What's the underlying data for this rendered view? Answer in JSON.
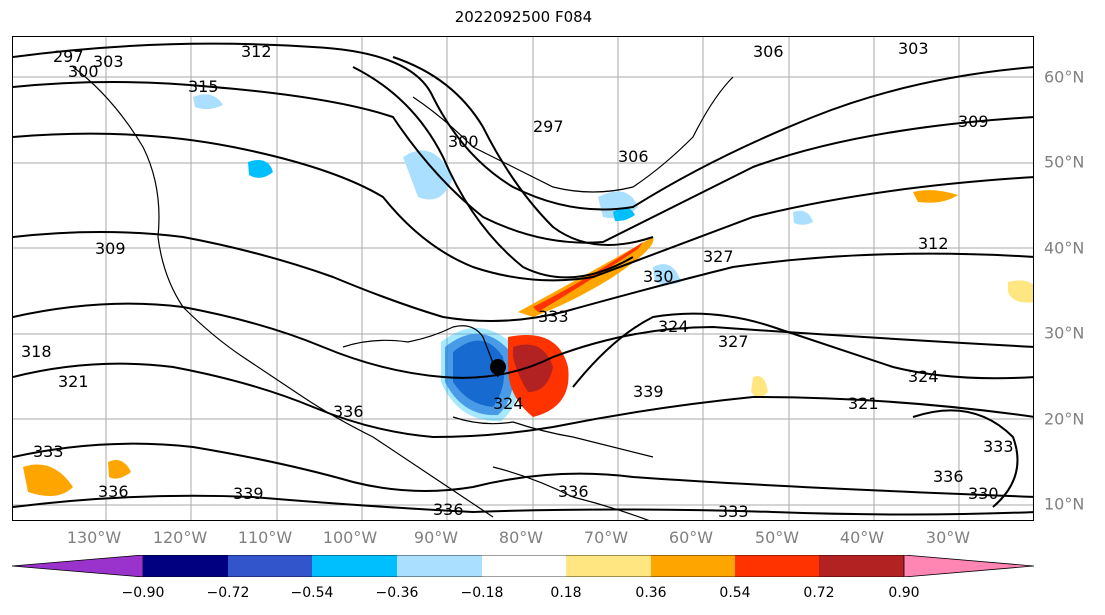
{
  "title": "2022092500 F084",
  "longitude_labels": [
    "130°W",
    "120°W",
    "110°W",
    "100°W",
    "90°W",
    "80°W",
    "70°W",
    "60°W",
    "50°W",
    "40°W",
    "30°W"
  ],
  "latitude_labels": [
    "60°N",
    "50°N",
    "40°N",
    "30°N",
    "20°N",
    "10°N"
  ],
  "contour_labels": [
    "297",
    "300",
    "303",
    "312",
    "315",
    "309",
    "306",
    "300",
    "297",
    "303",
    "306",
    "309",
    "327",
    "312",
    "330",
    "324",
    "333",
    "318",
    "321",
    "324",
    "327",
    "336",
    "339",
    "336",
    "336",
    "333",
    "330",
    "321",
    "324",
    "336",
    "339",
    "333",
    "336",
    "333"
  ],
  "colorbar": {
    "ticks": [
      "−0.90",
      "−0.72",
      "−0.54",
      "−0.36",
      "−0.18",
      "0.18",
      "0.36",
      "0.54",
      "0.72",
      "0.90"
    ],
    "colors": [
      "#9933cc",
      "#000080",
      "#3355cc",
      "#00bfff",
      "#aadfff",
      "#ffffff",
      "#ffe680",
      "#ffa500",
      "#ff3300",
      "#b22222",
      "#ff85b3"
    ]
  }
}
